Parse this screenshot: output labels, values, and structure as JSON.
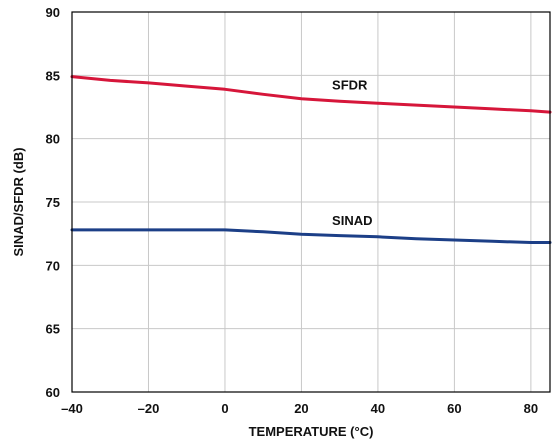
{
  "chart_data": {
    "type": "line",
    "title": "",
    "xlabel": "TEMPERATURE (°C)",
    "ylabel": "SINAD/SFDR (dB)",
    "xlim": [
      -40,
      85
    ],
    "ylim": [
      60,
      90
    ],
    "xticks": [
      -40,
      -20,
      0,
      20,
      40,
      60,
      80
    ],
    "xtick_labels": [
      "–40",
      "–20",
      "0",
      "20",
      "40",
      "60",
      "80"
    ],
    "yticks": [
      60,
      65,
      70,
      75,
      80,
      85,
      90
    ],
    "ytick_labels": [
      "60",
      "65",
      "70",
      "75",
      "80",
      "85",
      "90"
    ],
    "grid": true,
    "series": [
      {
        "name": "SFDR",
        "color": "#d6163a",
        "x": [
          -40,
          -30,
          -20,
          -10,
          0,
          10,
          20,
          30,
          40,
          50,
          60,
          70,
          80,
          85
        ],
        "y": [
          84.9,
          84.6,
          84.4,
          84.15,
          83.9,
          83.5,
          83.15,
          82.95,
          82.8,
          82.65,
          82.5,
          82.35,
          82.2,
          82.1
        ]
      },
      {
        "name": "SINAD",
        "color": "#1c3f87",
        "x": [
          -40,
          -30,
          -20,
          -10,
          0,
          10,
          20,
          30,
          40,
          50,
          60,
          70,
          80,
          85
        ],
        "y": [
          72.8,
          72.8,
          72.8,
          72.8,
          72.8,
          72.65,
          72.45,
          72.35,
          72.25,
          72.1,
          72.0,
          71.9,
          71.8,
          71.8
        ]
      }
    ],
    "annotations": [
      {
        "text": "SFDR",
        "x": 28,
        "y": 83.9
      },
      {
        "text": "SINAD",
        "x": 28,
        "y": 73.2
      }
    ]
  }
}
